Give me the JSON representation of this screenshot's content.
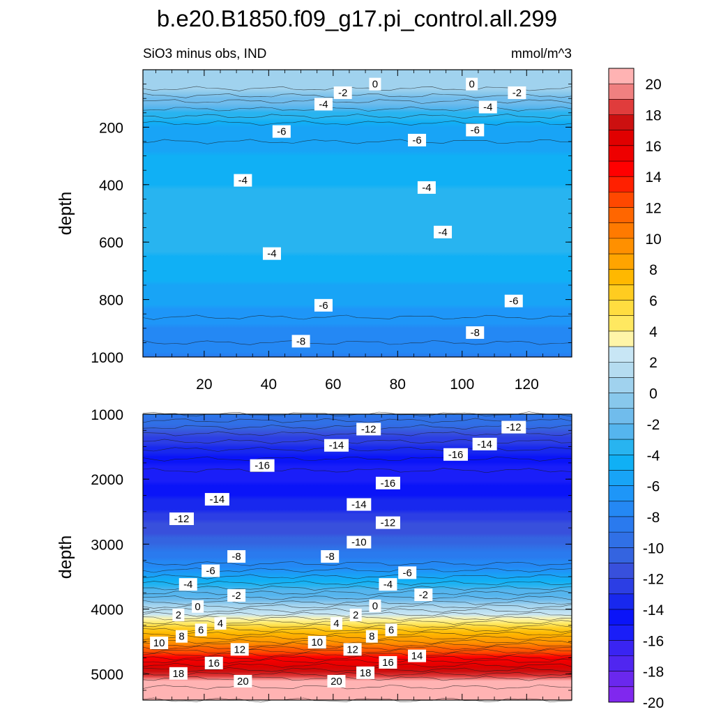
{
  "title": "b.e20.B1850.f09_g17.pi_control.all.299",
  "chart_data": [
    {
      "type": "heatmap",
      "subtitle_left": "SiO3 minus obs, IND",
      "subtitle_right": "mmol/m^3",
      "ylabel": "depth",
      "xlim": [
        1,
        134
      ],
      "ylim": [
        1000,
        0
      ],
      "xticks": [
        20,
        40,
        60,
        80,
        100,
        120
      ],
      "yticks": [
        200,
        400,
        600,
        800,
        1000
      ],
      "depth_profile": [
        {
          "depth": 0,
          "value": 0.5
        },
        {
          "depth": 60,
          "value": 0.2
        },
        {
          "depth": 80,
          "value": -0.5
        },
        {
          "depth": 110,
          "value": -2
        },
        {
          "depth": 150,
          "value": -3.5
        },
        {
          "depth": 200,
          "value": -5.6
        },
        {
          "depth": 250,
          "value": -6
        },
        {
          "depth": 320,
          "value": -5
        },
        {
          "depth": 400,
          "value": -4.5
        },
        {
          "depth": 500,
          "value": -3.8
        },
        {
          "depth": 600,
          "value": -4.2
        },
        {
          "depth": 700,
          "value": -5
        },
        {
          "depth": 800,
          "value": -6.2
        },
        {
          "depth": 900,
          "value": -7.5
        },
        {
          "depth": 1000,
          "value": -8.5
        }
      ],
      "contour_labels": [
        {
          "text": "0",
          "x": 73,
          "depth": 50
        },
        {
          "text": "0",
          "x": 103,
          "depth": 50
        },
        {
          "text": "-2",
          "x": 63,
          "depth": 80
        },
        {
          "text": "-2",
          "x": 117,
          "depth": 80
        },
        {
          "text": "-4",
          "x": 57,
          "depth": 120
        },
        {
          "text": "-4",
          "x": 108,
          "depth": 130
        },
        {
          "text": "-6",
          "x": 44,
          "depth": 215
        },
        {
          "text": "-6",
          "x": 104,
          "depth": 210
        },
        {
          "text": "-6",
          "x": 86,
          "depth": 245
        },
        {
          "text": "-4",
          "x": 32,
          "depth": 385
        },
        {
          "text": "-4",
          "x": 89,
          "depth": 410
        },
        {
          "text": "-4",
          "x": 94,
          "depth": 565
        },
        {
          "text": "-4",
          "x": 41,
          "depth": 640
        },
        {
          "text": "-6",
          "x": 57,
          "depth": 820
        },
        {
          "text": "-6",
          "x": 116,
          "depth": 805
        },
        {
          "text": "-8",
          "x": 104,
          "depth": 915
        },
        {
          "text": "-8",
          "x": 50,
          "depth": 945
        }
      ]
    },
    {
      "type": "heatmap",
      "ylabel": "depth",
      "xlim": [
        1,
        134
      ],
      "ylim": [
        5400,
        1000
      ],
      "yticks": [
        1000,
        2000,
        3000,
        4000,
        5000
      ],
      "depth_profile": [
        {
          "depth": 1000,
          "value": -9
        },
        {
          "depth": 1300,
          "value": -12
        },
        {
          "depth": 1600,
          "value": -14.5
        },
        {
          "depth": 1900,
          "value": -16.2
        },
        {
          "depth": 2200,
          "value": -15
        },
        {
          "depth": 2600,
          "value": -13
        },
        {
          "depth": 3000,
          "value": -10.5
        },
        {
          "depth": 3300,
          "value": -8
        },
        {
          "depth": 3600,
          "value": -5
        },
        {
          "depth": 3900,
          "value": -1
        },
        {
          "depth": 3960,
          "value": 0
        },
        {
          "depth": 4200,
          "value": 4
        },
        {
          "depth": 4500,
          "value": 9
        },
        {
          "depth": 4800,
          "value": 15
        },
        {
          "depth": 5100,
          "value": 19.5
        },
        {
          "depth": 5400,
          "value": 21
        }
      ],
      "contour_labels": [
        {
          "text": "-12",
          "x": 71,
          "depth": 1230
        },
        {
          "text": "-12",
          "x": 116,
          "depth": 1200
        },
        {
          "text": "-14",
          "x": 61,
          "depth": 1480
        },
        {
          "text": "-14",
          "x": 107,
          "depth": 1460
        },
        {
          "text": "-16",
          "x": 98,
          "depth": 1620
        },
        {
          "text": "-16",
          "x": 38,
          "depth": 1790
        },
        {
          "text": "-16",
          "x": 77,
          "depth": 2060
        },
        {
          "text": "-14",
          "x": 24,
          "depth": 2310
        },
        {
          "text": "-14",
          "x": 68,
          "depth": 2390
        },
        {
          "text": "-12",
          "x": 13,
          "depth": 2610
        },
        {
          "text": "-12",
          "x": 77,
          "depth": 2670
        },
        {
          "text": "-10",
          "x": 68,
          "depth": 2970
        },
        {
          "text": "-8",
          "x": 30,
          "depth": 3190
        },
        {
          "text": "-8",
          "x": 59,
          "depth": 3190
        },
        {
          "text": "-6",
          "x": 22,
          "depth": 3410
        },
        {
          "text": "-6",
          "x": 83,
          "depth": 3440
        },
        {
          "text": "-4",
          "x": 15,
          "depth": 3620
        },
        {
          "text": "-4",
          "x": 77,
          "depth": 3620
        },
        {
          "text": "-2",
          "x": 30,
          "depth": 3790
        },
        {
          "text": "-2",
          "x": 88,
          "depth": 3780
        },
        {
          "text": "0",
          "x": 18,
          "depth": 3960
        },
        {
          "text": "0",
          "x": 73,
          "depth": 3950
        },
        {
          "text": "2",
          "x": 12,
          "depth": 4090
        },
        {
          "text": "2",
          "x": 67,
          "depth": 4090
        },
        {
          "text": "4",
          "x": 25,
          "depth": 4220
        },
        {
          "text": "4",
          "x": 61,
          "depth": 4220
        },
        {
          "text": "6",
          "x": 19,
          "depth": 4320
        },
        {
          "text": "6",
          "x": 78,
          "depth": 4320
        },
        {
          "text": "8",
          "x": 13,
          "depth": 4420
        },
        {
          "text": "8",
          "x": 72,
          "depth": 4420
        },
        {
          "text": "10",
          "x": 6,
          "depth": 4520
        },
        {
          "text": "10",
          "x": 55,
          "depth": 4510
        },
        {
          "text": "12",
          "x": 31,
          "depth": 4620
        },
        {
          "text": "12",
          "x": 66,
          "depth": 4620
        },
        {
          "text": "14",
          "x": 86,
          "depth": 4720
        },
        {
          "text": "16",
          "x": 23,
          "depth": 4830
        },
        {
          "text": "16",
          "x": 77,
          "depth": 4820
        },
        {
          "text": "18",
          "x": 12,
          "depth": 4990
        },
        {
          "text": "18",
          "x": 70,
          "depth": 4980
        },
        {
          "text": "20",
          "x": 32,
          "depth": 5110
        },
        {
          "text": "20",
          "x": 61,
          "depth": 5110
        }
      ]
    }
  ],
  "colorbar": {
    "labels": [
      "20",
      "18",
      "16",
      "14",
      "12",
      "10",
      "8",
      "6",
      "4",
      "2",
      "0",
      "-2",
      "-4",
      "-6",
      "-8",
      "-10",
      "-12",
      "-14",
      "-16",
      "-18",
      "-20"
    ],
    "colors": [
      "#ffb3b3",
      "#f08080",
      "#e03c3c",
      "#cc1010",
      "#e00000",
      "#ee0000",
      "#ff0000",
      "#ff2000",
      "#ff4800",
      "#ff6600",
      "#ff7a00",
      "#ff9000",
      "#ffa400",
      "#ffb800",
      "#ffcc20",
      "#ffdd40",
      "#ffe860",
      "#fff5a8",
      "#c8e6f5",
      "#b5dcf0",
      "#a0d2ee",
      "#88c8ec",
      "#70bcec",
      "#55b5ee",
      "#28b4f0",
      "#10b0f5",
      "#18a4f6",
      "#1e96f8",
      "#2488f4",
      "#2a7aee",
      "#3070e6",
      "#3464e0",
      "#3850dc",
      "#2c3ee4",
      "#1828ee",
      "#0a14f8",
      "#1a1ef8",
      "#3a24f2",
      "#5026f0",
      "#6a28ee",
      "#8028ee"
    ]
  }
}
